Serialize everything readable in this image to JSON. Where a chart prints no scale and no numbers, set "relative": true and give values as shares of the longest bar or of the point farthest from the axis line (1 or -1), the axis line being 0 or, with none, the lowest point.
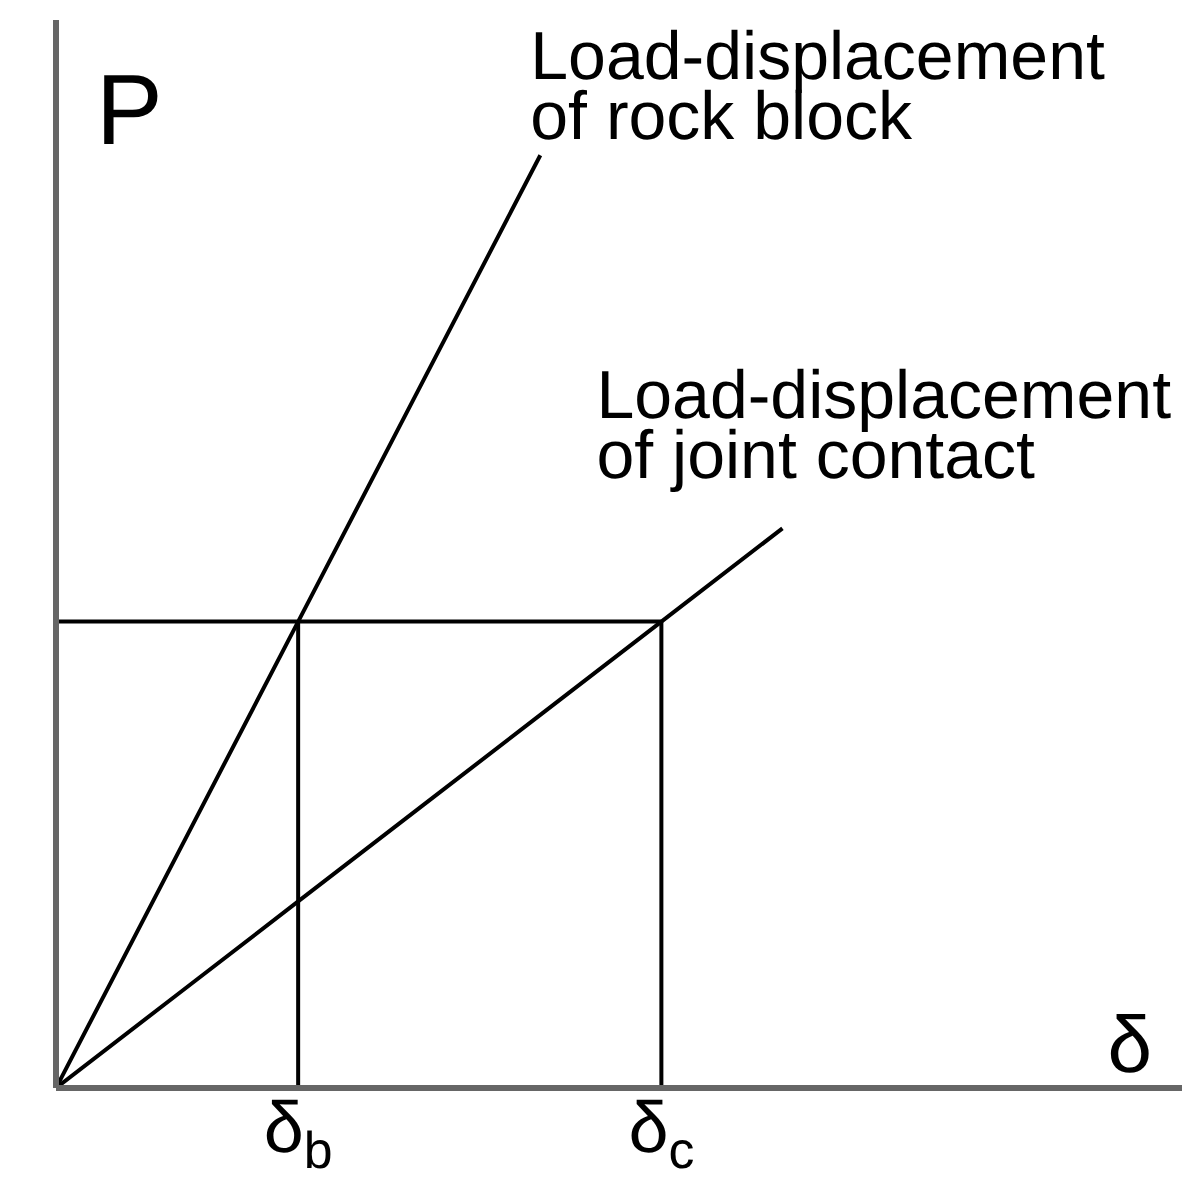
{
  "chart_data": {
    "type": "line",
    "xlabel": "δ",
    "ylabel": "P",
    "relative": true,
    "categories": [
      null,
      null,
      "δ$_{b}$",
      null,
      null,
      "δ$_{c}$",
      null,
      null,
      null,
      null
    ],
    "series": [
      {
        "name": "Load-displacement of rock block",
        "color": "#000000",
        "values": [
          0,
          0.25,
          0.5,
          0.75,
          1,
          null,
          null,
          null,
          null,
          null
        ]
      },
      {
        "name": "Load-displacement of joint contact",
        "color": "#000000",
        "values": [
          0,
          0.1,
          0.2,
          0.3,
          0.4,
          0.5,
          0.6,
          null,
          null,
          null
        ]
      },
      {
        "color": "#000000",
        "values": [
          0.5,
          0.5,
          0.5,
          0.5,
          0.5,
          0.5,
          null,
          null,
          null,
          null
        ]
      },
      {
        "color": "#000000",
        "x": [
          "δ$_{b}$",
          "δ$_{b}$"
        ],
        "values": [
          0.5,
          0
        ]
      },
      {
        "color": "#000000",
        "x": [
          "δ$_{c}$",
          "δ$_{c}$"
        ],
        "values": [
          0.5,
          0
        ]
      }
    ]
  }
}
